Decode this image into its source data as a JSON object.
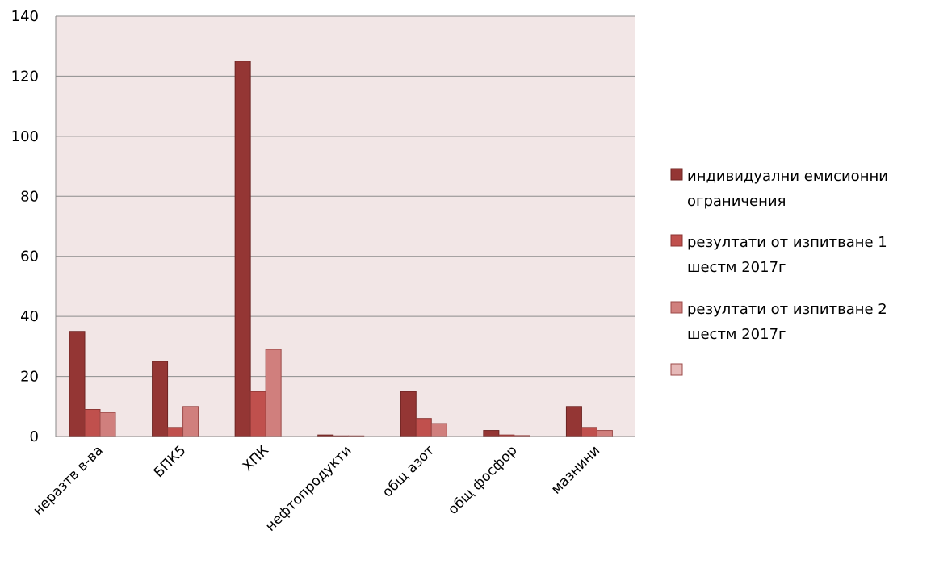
{
  "chart_data": {
    "type": "bar",
    "categories": [
      "неразтв в-ва",
      "БПК5",
      "ХПК",
      "нефтопродукти",
      "общ азот",
      "общ фосфор",
      "мазнини"
    ],
    "series": [
      {
        "name": "индивидуални емисионни ограничения",
        "values": [
          35,
          25,
          125,
          0.5,
          15,
          2,
          10
        ],
        "color": "#943634",
        "border": "#6e2422"
      },
      {
        "name": "резултати от изпитване 1 шестм 2017г",
        "values": [
          9,
          3,
          15,
          0.2,
          6,
          0.5,
          3
        ],
        "color": "#c0504d",
        "border": "#8c3533"
      },
      {
        "name": "резултати от изпитване 2 шестм 2017г",
        "values": [
          8,
          10,
          29,
          0.2,
          4.3,
          0.3,
          2
        ],
        "color": "#d07f7d",
        "border": "#9c4a48"
      },
      {
        "name": "",
        "values": [
          0,
          0,
          0,
          0,
          0,
          0,
          0
        ],
        "color": "#e6b9b8",
        "border": "#9c4a48"
      }
    ],
    "yticks": [
      "0",
      "20",
      "40",
      "60",
      "80",
      "100",
      "120",
      "140"
    ],
    "ylim": [
      0,
      140
    ],
    "grid": true,
    "legend_position": "right",
    "plot_background": "#f2e6e6"
  }
}
